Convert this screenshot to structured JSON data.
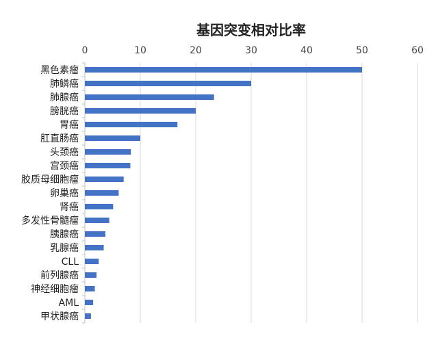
{
  "chart_data": {
    "type": "bar",
    "orientation": "horizontal",
    "title": "基因突变相对比率",
    "xlim": [
      0,
      60
    ],
    "xticks": [
      0,
      10,
      20,
      30,
      40,
      50,
      60
    ],
    "x_axis_position": "top",
    "grid": "vertical",
    "categories": [
      "黑色素瘤",
      "肺鳞癌",
      "肺腺癌",
      "膀胱癌",
      "胃癌",
      "肛直肠癌",
      "头颈癌",
      "宫颈癌",
      "胶质母细胞瘤",
      "卵巢癌",
      "肾癌",
      "多发性骨髓瘤",
      "胰腺癌",
      "乳腺癌",
      "CLL",
      "前列腺癌",
      "神经细胞瘤",
      "AML",
      "甲状腺癌"
    ],
    "values": [
      50,
      30,
      23.3,
      20,
      16.7,
      10,
      8.3,
      8.2,
      7,
      6.1,
      5.1,
      4.4,
      3.7,
      3.4,
      2.5,
      2.1,
      1.8,
      1.5,
      1.1
    ],
    "bar_color": "#4472C4"
  }
}
